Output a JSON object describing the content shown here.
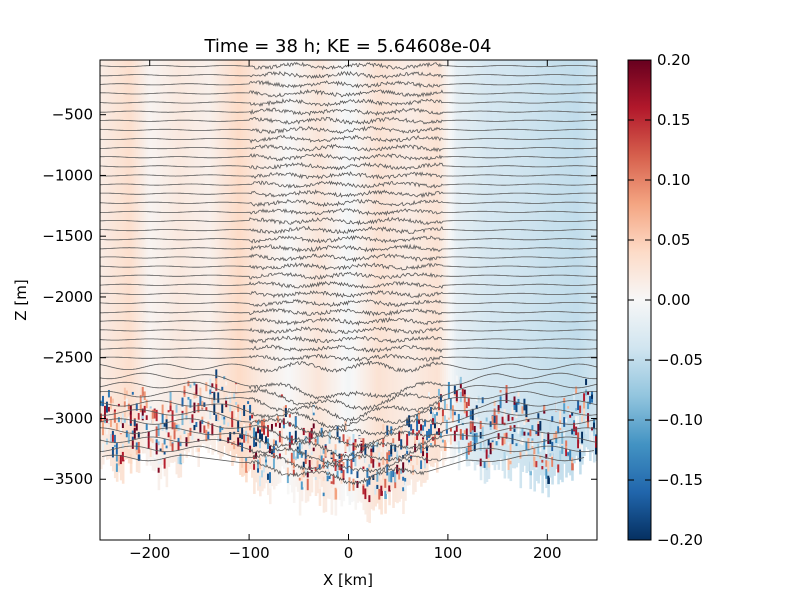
{
  "chart_data": {
    "type": "heatmap",
    "title": "Time = 38 h; KE = 5.64608e-04",
    "xlabel": "X [km]",
    "ylabel": "Z [m]",
    "xlim": [
      -250,
      250
    ],
    "ylim": [
      -4000,
      -50
    ],
    "x_ticks": [
      -200,
      -100,
      0,
      100,
      200
    ],
    "x_tick_labels": [
      "−200",
      "−100",
      "0",
      "100",
      "200"
    ],
    "y_ticks": [
      -500,
      -1000,
      -1500,
      -2000,
      -2500,
      -3000,
      -3500
    ],
    "y_tick_labels": [
      "−500",
      "−1000",
      "−1500",
      "−2000",
      "−2500",
      "−3000",
      "−3500"
    ],
    "colorbar": {
      "colormap": "RdBu_r",
      "min": -0.2,
      "max": 0.2,
      "ticks": [
        0.2,
        0.15,
        0.1,
        0.05,
        0.0,
        -0.05,
        -0.1,
        -0.15,
        -0.2
      ],
      "tick_labels": [
        "0.20",
        "0.15",
        "0.10",
        "0.05",
        "0.00",
        "−0.05",
        "−0.10",
        "−0.15",
        "−0.20"
      ]
    },
    "field_profile": {
      "x": [
        -250,
        -220,
        -200,
        -170,
        -140,
        -110,
        -90,
        -60,
        -30,
        0,
        30,
        60,
        90,
        110,
        140,
        170,
        200,
        230,
        250
      ],
      "value": [
        0.015,
        0.035,
        0.005,
        0.02,
        0.01,
        0.04,
        0.02,
        0.0,
        0.025,
        -0.005,
        0.03,
        0.015,
        0.03,
        -0.02,
        -0.035,
        -0.04,
        -0.045,
        -0.05,
        -0.04
      ]
    },
    "bottom_profile": {
      "x": [
        -250,
        -230,
        -210,
        -190,
        -170,
        -150,
        -130,
        -110,
        -95,
        -80,
        -65,
        -50,
        -35,
        -20,
        -5,
        10,
        25,
        40,
        55,
        70,
        85,
        100,
        120,
        140,
        160,
        180,
        200,
        220,
        240,
        250
      ],
      "z": [
        -3300,
        -3450,
        -3350,
        -3500,
        -3400,
        -3300,
        -3250,
        -3350,
        -3550,
        -3650,
        -3450,
        -3700,
        -3550,
        -3750,
        -3650,
        -3700,
        -3800,
        -3650,
        -3700,
        -3500,
        -3400,
        -3300,
        -3350,
        -3450,
        -3400,
        -3500,
        -3550,
        -3450,
        -3300,
        -3250
      ]
    },
    "contours": {
      "z_start": -100,
      "z_step": -75,
      "count": 44,
      "color": "#5a5a5a",
      "wavy_region_x": [
        -100,
        95
      ]
    },
    "grid": false
  }
}
